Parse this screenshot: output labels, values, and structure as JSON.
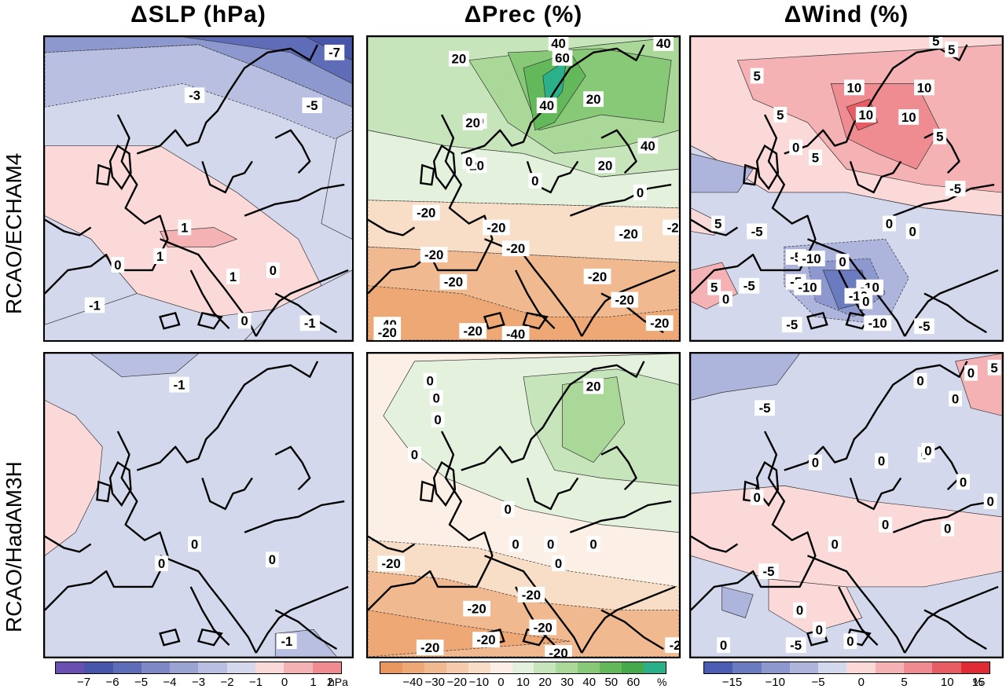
{
  "columns": [
    {
      "title": "ΔSLP (hPa)"
    },
    {
      "title": "ΔPrec (%)"
    },
    {
      "title": "ΔWind (%)"
    }
  ],
  "rows": [
    {
      "label": "RCAO/ECHAM4"
    },
    {
      "label": "RCAO/HadAM3H"
    }
  ],
  "panels": {
    "slp_echam4": {
      "labels": [
        "-7",
        "-3",
        "-5",
        "1",
        "1",
        "0",
        "1",
        "0",
        "0",
        "-1",
        "-1"
      ]
    },
    "prec_echam4": {
      "labels": [
        "40",
        "40",
        "20",
        "60",
        "20",
        "40",
        "20",
        "20",
        "40",
        "20",
        "0",
        "0",
        "20",
        "0",
        "-20",
        "-20",
        "-20",
        "-2",
        "-20",
        "-20",
        "-20",
        "-20",
        "-20",
        "-20",
        "-40",
        "-20",
        "-20",
        "-40"
      ]
    },
    "wind_echam4": {
      "labels": [
        "5",
        "5",
        "5",
        "10",
        "10",
        "10",
        "10",
        "5",
        "5",
        "0",
        "5",
        "-5",
        "5",
        "-5",
        "0",
        "-5",
        "0",
        "-5",
        "-5",
        "-10",
        "0",
        "-10",
        "-10",
        "-10",
        "5",
        "-5",
        "0",
        "0",
        "-5",
        "-10",
        "-5"
      ]
    },
    "slp_hadam3h": {
      "labels": [
        "-1",
        "0",
        "0",
        "0",
        "-1"
      ]
    },
    "prec_hadam3h": {
      "labels": [
        "20",
        "0",
        "0",
        "0",
        "0",
        "0",
        "0",
        "0",
        "0",
        "0",
        "-20",
        "-20",
        "-20",
        "-20",
        "-20",
        "-20",
        "-20",
        "-2"
      ]
    },
    "wind_hadam3h": {
      "labels": [
        "-5",
        "0",
        "5",
        "0",
        "0",
        "0",
        "0",
        "0",
        "0",
        "0",
        "0",
        "0",
        "0",
        "0",
        "0",
        "-5",
        "0",
        "0",
        "0",
        "-5",
        "0"
      ]
    }
  },
  "colorbars": [
    {
      "id": "slp",
      "colors": [
        "#6a4fb0",
        "#4756ab",
        "#5f6db8",
        "#7d88c5",
        "#9ba3d3",
        "#b8bfe0",
        "#d4d8ec",
        "#fbd9d9",
        "#f5b2b5",
        "#ee8c91"
      ],
      "ticks": [
        "−7",
        "−6",
        "−5",
        "−4",
        "−3",
        "−2",
        "−1",
        "0",
        "1",
        "2"
      ],
      "unit": "hPa"
    },
    {
      "id": "prec",
      "colors": [
        "#e8965c",
        "#eda876",
        "#f1b990",
        "#f4cbab",
        "#f8ddc7",
        "#fcefe5",
        "#e3f1dd",
        "#c7e5bb",
        "#a9d898",
        "#87c977",
        "#63b95a",
        "#44aa4c",
        "#2bb189"
      ],
      "ticks": [
        "−40",
        "−30",
        "−20",
        "−10",
        "0",
        "10",
        "20",
        "30",
        "40",
        "50",
        "60"
      ],
      "unit": "%"
    },
    {
      "id": "wind",
      "colors": [
        "#4a5db3",
        "#6b7bc0",
        "#8c98ce",
        "#aeb5dc",
        "#d3d8ec",
        "#fbd9d9",
        "#f5b2b5",
        "#ee8c91",
        "#e85d64",
        "#e02b35"
      ],
      "ticks": [
        "−15",
        "−10",
        "−5",
        "0",
        "5",
        "10",
        "15"
      ],
      "unit": "%"
    }
  ]
}
